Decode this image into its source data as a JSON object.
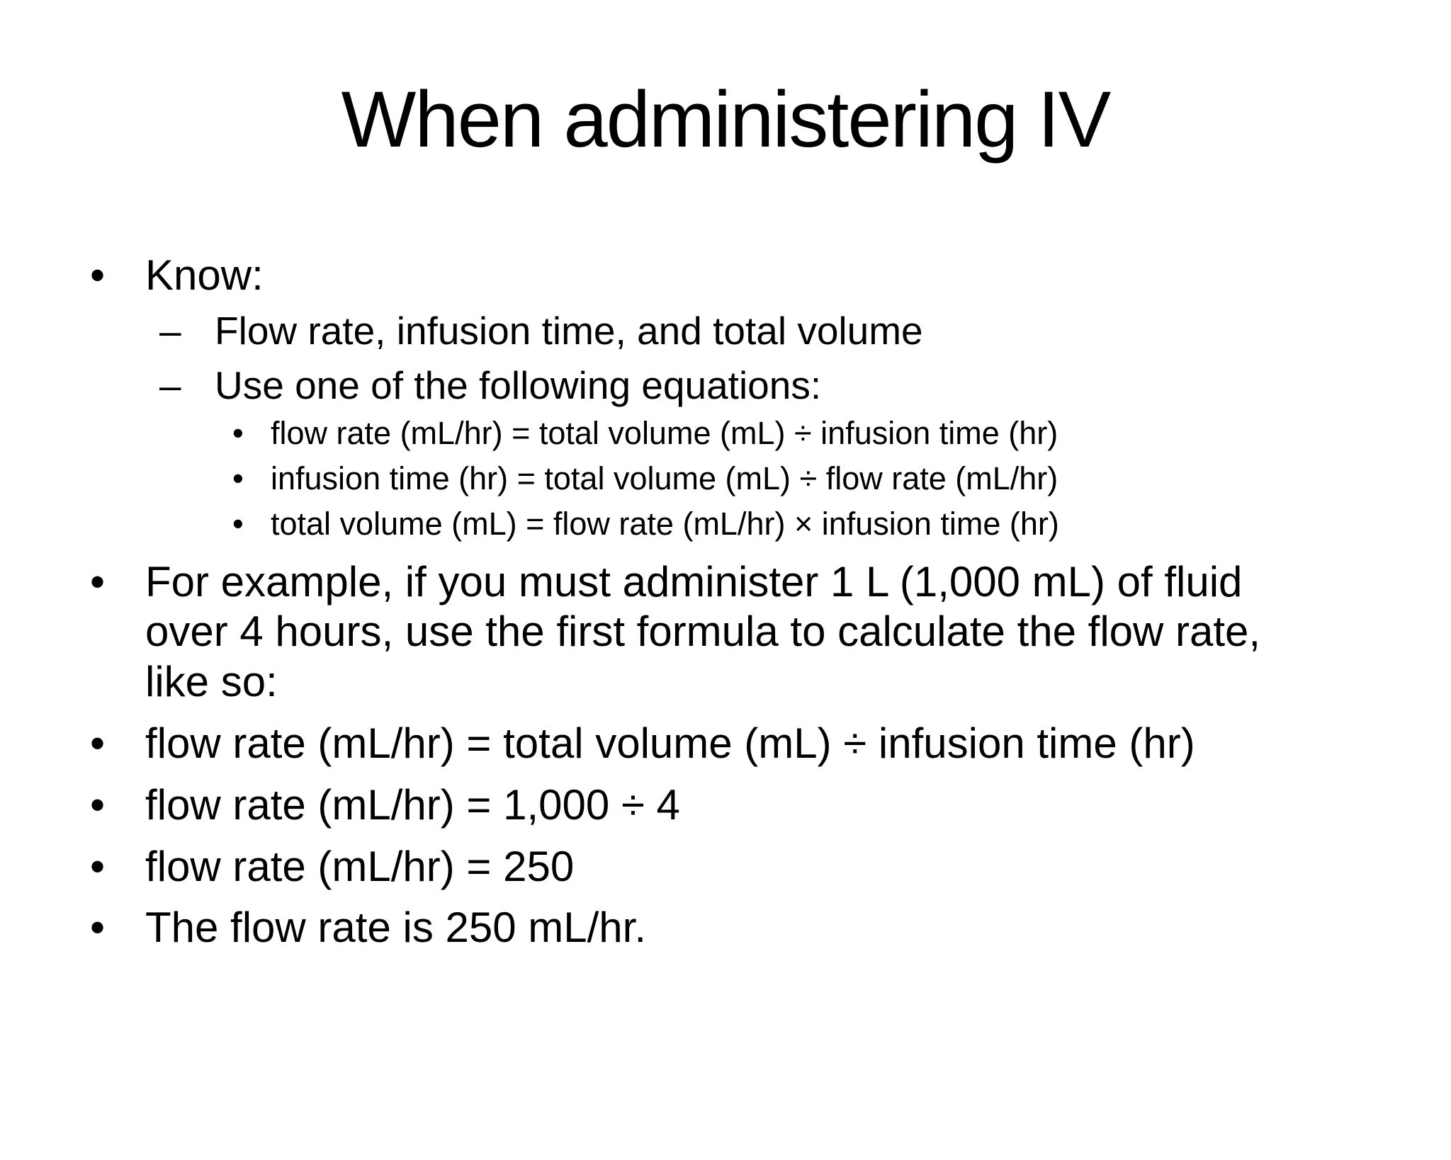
{
  "colors": {
    "background": "#ffffff",
    "text": "#000000"
  },
  "slide": {
    "title": "When administering IV",
    "bullets": [
      {
        "level": 1,
        "marker": "•",
        "text": "Know:"
      },
      {
        "level": 2,
        "marker": "–",
        "text": "Flow rate, infusion time, and total volume"
      },
      {
        "level": 2,
        "marker": "–",
        "text": "Use one of the following equations:"
      },
      {
        "level": 3,
        "marker": "•",
        "text": "flow rate (mL/hr) = total volume (mL) ÷ infusion time (hr)"
      },
      {
        "level": 3,
        "marker": "•",
        "text": "infusion time (hr) = total volume (mL) ÷ flow rate (mL/hr)"
      },
      {
        "level": 3,
        "marker": "•",
        "text": "total volume (mL) = flow rate (mL/hr) × infusion time (hr)"
      },
      {
        "level": 1,
        "marker": "•",
        "text": "For example, if you must administer 1 L (1,000 mL) of fluid over 4 hours, use the first formula to calculate the flow rate, like so:"
      },
      {
        "level": 1,
        "marker": "•",
        "text": "flow rate (mL/hr) = total volume (mL) ÷ infusion time (hr)"
      },
      {
        "level": 1,
        "marker": "•",
        "text": "flow rate (mL/hr) = 1,000 ÷ 4"
      },
      {
        "level": 1,
        "marker": "•",
        "text": "flow rate (mL/hr) = 250"
      },
      {
        "level": 1,
        "marker": "•",
        "text": "The flow rate is 250 mL/hr."
      }
    ]
  }
}
